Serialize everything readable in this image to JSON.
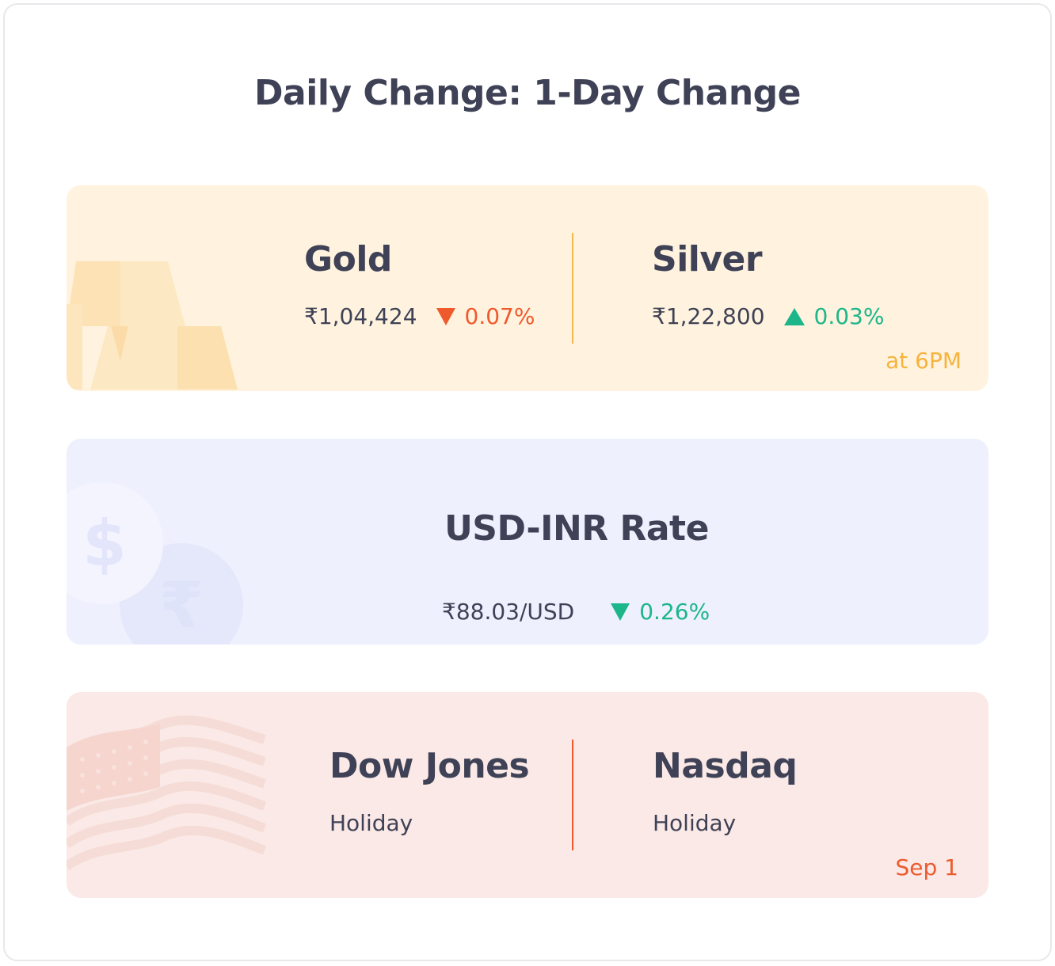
{
  "title": "Daily Change: 1-Day Change",
  "metals": {
    "gold": {
      "name": "Gold",
      "price": "₹1,04,424",
      "change": "0.07%",
      "direction": "down"
    },
    "silver": {
      "name": "Silver",
      "price": "₹1,22,800",
      "change": "0.03%",
      "direction": "up"
    },
    "footnote": "at 6PM"
  },
  "currency": {
    "name": "USD-INR Rate",
    "price": "₹88.03/USD",
    "change": "0.26%",
    "direction": "down"
  },
  "us_markets": {
    "dow": {
      "name": "Dow Jones",
      "status": "Holiday"
    },
    "nasdaq": {
      "name": "Nasdaq",
      "status": "Holiday"
    },
    "footnote": "Sep 1"
  },
  "colors": {
    "text": "#3f4256",
    "red": "#ef5a2d",
    "green": "#1cb68a",
    "gold_card": "#fff3df",
    "fx_card": "#eef0fd",
    "us_card": "#fae9e6"
  },
  "icons": {
    "gold_background": "gold-bars-icon",
    "fx_background": "dollar-rupee-coins-icon",
    "us_background": "us-flag-icon"
  }
}
